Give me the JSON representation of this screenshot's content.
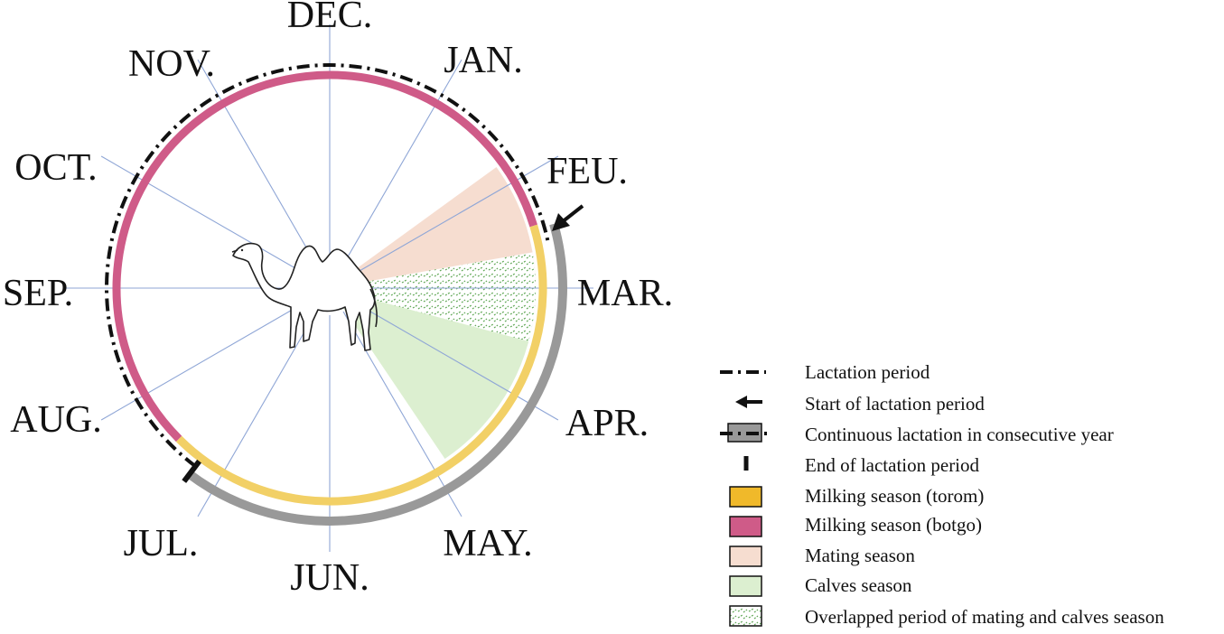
{
  "months": [
    {
      "key": "dec",
      "label": "DEC."
    },
    {
      "key": "jan",
      "label": "JAN."
    },
    {
      "key": "feb",
      "label": "FEU."
    },
    {
      "key": "mar",
      "label": "MAR."
    },
    {
      "key": "apr",
      "label": "APR."
    },
    {
      "key": "may",
      "label": "MAY."
    },
    {
      "key": "jun",
      "label": "JUN."
    },
    {
      "key": "jul",
      "label": "JUL."
    },
    {
      "key": "aug",
      "label": "AUG."
    },
    {
      "key": "sep",
      "label": "SEP."
    },
    {
      "key": "oct",
      "label": "OCT."
    },
    {
      "key": "nov",
      "label": "NOV."
    }
  ],
  "legend": [
    {
      "key": "lactation",
      "label": "Lactation  period"
    },
    {
      "key": "start",
      "label": "Start of lactation period"
    },
    {
      "key": "continuous",
      "label": "Continuous lactation in consecutive year"
    },
    {
      "key": "end",
      "label": "End of lactation period"
    },
    {
      "key": "torom",
      "label": "Milking season (torom)"
    },
    {
      "key": "botgo",
      "label": "Milking season (botgo)"
    },
    {
      "key": "mating",
      "label": "Mating season"
    },
    {
      "key": "calves",
      "label": "Calves season"
    },
    {
      "key": "overlap",
      "label": "Overlapped period of mating and calves season"
    }
  ],
  "colors": {
    "torom": "#f2d066",
    "torom_swatch": "#f0b92a",
    "botgo": "#cf5b88",
    "mating": "#f6ddd0",
    "calves": "#dcefd0",
    "overlap_hatch": "#5ea653",
    "continuous": "#999999",
    "spoke": "#8fa6d6"
  },
  "icon": {
    "center": "camel-icon"
  }
}
